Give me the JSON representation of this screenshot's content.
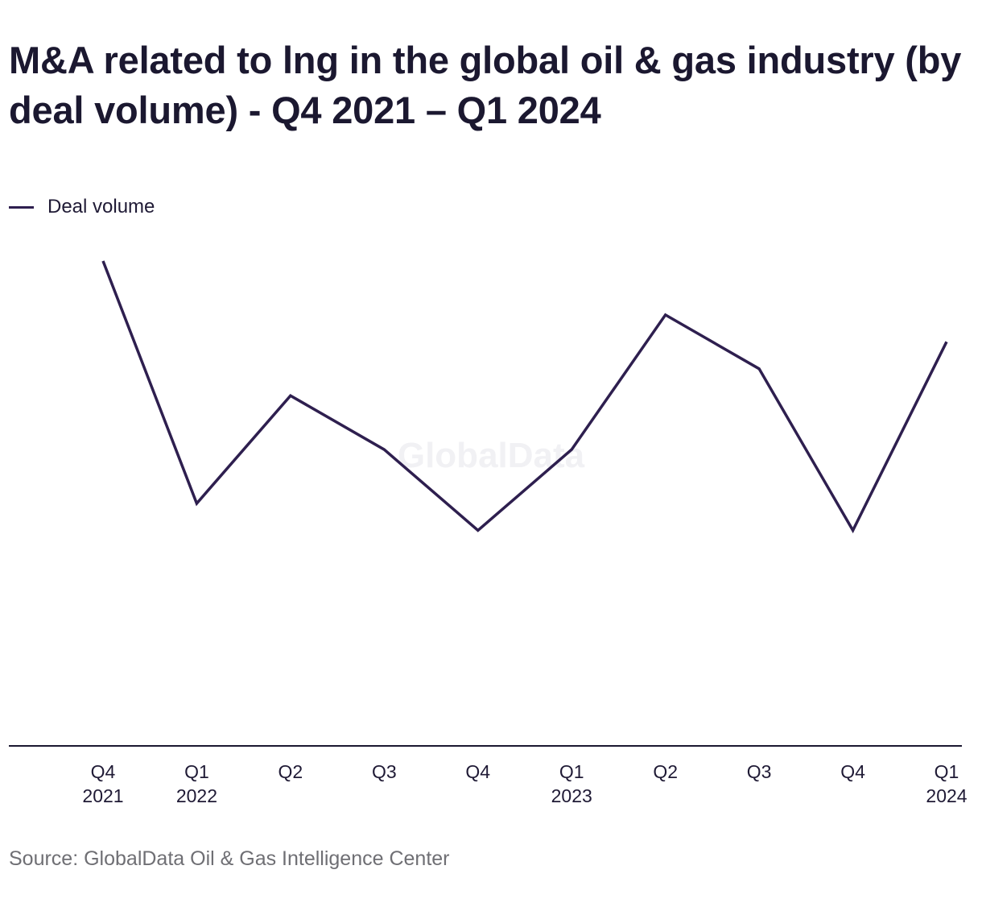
{
  "title": "M&A related to lng in the global oil & gas industry (by deal volume) - Q4 2021 – Q1 2024",
  "legend": {
    "label": "Deal volume",
    "color": "#2e1f4f"
  },
  "watermark": "GlobalData",
  "source": "Source: GlobalData Oil & Gas Intelligence Center",
  "chart_data": {
    "type": "line",
    "title": "M&A related to lng in the global oil & gas industry (by deal volume) - Q4 2021 – Q1 2024",
    "xlabel": "",
    "ylabel": "",
    "categories": [
      "Q4 2021",
      "Q1 2022",
      "Q2 2022",
      "Q3 2022",
      "Q4 2022",
      "Q1 2023",
      "Q2 2023",
      "Q3 2023",
      "Q4 2023",
      "Q1 2024"
    ],
    "tick_labels": [
      [
        "Q4",
        "2021"
      ],
      [
        "Q1",
        "2022"
      ],
      [
        "Q2",
        ""
      ],
      [
        "Q3",
        ""
      ],
      [
        "Q4",
        ""
      ],
      [
        "Q1",
        "2023"
      ],
      [
        "Q2",
        ""
      ],
      [
        "Q3",
        ""
      ],
      [
        "Q4",
        ""
      ],
      [
        "Q1",
        "2024"
      ]
    ],
    "series": [
      {
        "name": "Deal volume",
        "color": "#2e1f4f",
        "values": [
          18,
          9,
          13,
          11,
          8,
          11,
          16,
          14,
          8,
          15
        ]
      }
    ],
    "ylim": [
      0,
      18
    ],
    "y_axis_visible": false,
    "grid": false,
    "legend_position": "top-left"
  }
}
